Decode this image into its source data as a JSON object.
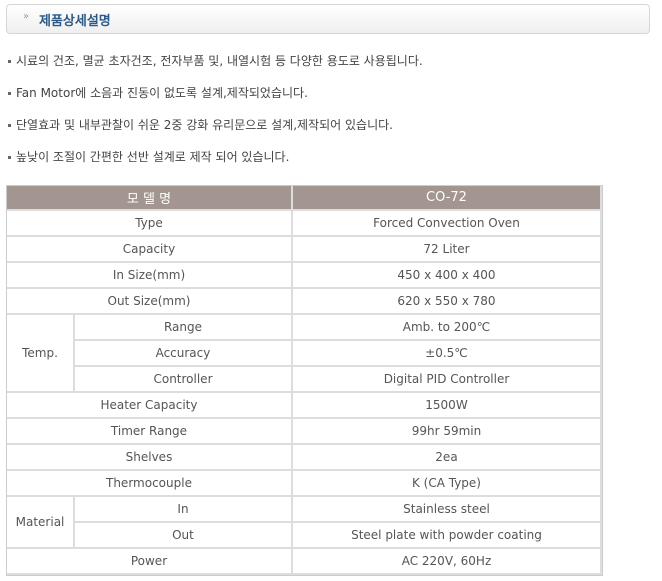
{
  "title": "제품상세설명",
  "bullets": [
    "시료의 건조, 멸균 초자건조, 전자부품 및, 내열시험 등 다양한 용도로 사용됩니다.",
    "Fan Motor에 소음과 진동이 없도록 설계,제작되었습니다.",
    "단열효과 및 내부관찰이 쉬운 2중 강화 유리문으로 설계,제작되어 있습니다.",
    "높낮이 조절이 간편한 선반 설계로 제작 되어 있습니다."
  ],
  "table": {
    "header": [
      "모 델 명",
      "CO-72"
    ],
    "type": [
      "Type",
      "Forced Convection Oven"
    ],
    "capacity": [
      "Capacity",
      "72 Liter"
    ],
    "in_size": [
      "In Size(mm)",
      "450 x 400 x 400"
    ],
    "out_size": [
      "Out Size(mm)",
      "620 x 550 x 780"
    ],
    "temp": "Temp.",
    "range": [
      "Range",
      "Amb. to 200℃"
    ],
    "accuracy": [
      "Accuracy",
      "±0.5℃"
    ],
    "controller": [
      "Controller",
      "Digital PID Controller"
    ],
    "heater": [
      "Heater Capacity",
      "1500W"
    ],
    "timer": [
      "Timer Range",
      "99hr 59min"
    ],
    "shelves": [
      "Shelves",
      "2ea"
    ],
    "thermo": [
      "Thermocouple",
      "K (CA Type)"
    ],
    "material": "Material",
    "mat_in": [
      "In",
      "Stainless steel"
    ],
    "mat_out": [
      "Out",
      "Steel plate with powder coating"
    ],
    "power": [
      "Power",
      "AC 220V, 60Hz"
    ]
  }
}
